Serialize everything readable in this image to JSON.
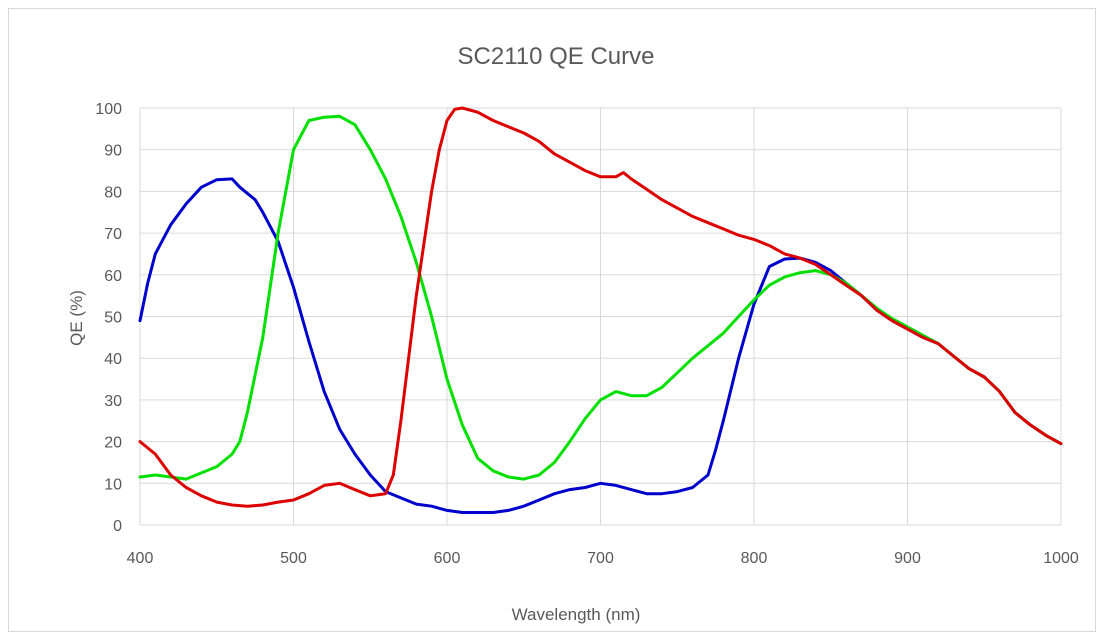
{
  "chart_data": {
    "type": "line",
    "title": "SC2110 QE Curve",
    "xlabel": "Wavelength (nm)",
    "ylabel": "QE (%)",
    "xlim": [
      400,
      1000
    ],
    "ylim": [
      0,
      100
    ],
    "xticks": [
      400,
      500,
      600,
      700,
      800,
      900,
      1000
    ],
    "yticks": [
      0,
      10,
      20,
      30,
      40,
      50,
      60,
      70,
      80,
      90,
      100
    ],
    "grid": "on",
    "legend": "none",
    "series": [
      {
        "color": "#0000cc",
        "points": [
          [
            400,
            49
          ],
          [
            405,
            58
          ],
          [
            410,
            65
          ],
          [
            420,
            72
          ],
          [
            430,
            77
          ],
          [
            440,
            81
          ],
          [
            450,
            82.8
          ],
          [
            460,
            83
          ],
          [
            465,
            81
          ],
          [
            475,
            78
          ],
          [
            480,
            75
          ],
          [
            490,
            68
          ],
          [
            500,
            57
          ],
          [
            510,
            44
          ],
          [
            520,
            32
          ],
          [
            530,
            23
          ],
          [
            540,
            17
          ],
          [
            550,
            12
          ],
          [
            560,
            8
          ],
          [
            570,
            6.5
          ],
          [
            580,
            5
          ],
          [
            590,
            4.5
          ],
          [
            600,
            3.5
          ],
          [
            610,
            3
          ],
          [
            620,
            3
          ],
          [
            630,
            3
          ],
          [
            640,
            3.5
          ],
          [
            650,
            4.5
          ],
          [
            660,
            6
          ],
          [
            670,
            7.5
          ],
          [
            680,
            8.5
          ],
          [
            690,
            9
          ],
          [
            700,
            10
          ],
          [
            710,
            9.5
          ],
          [
            720,
            8.5
          ],
          [
            730,
            7.5
          ],
          [
            740,
            7.5
          ],
          [
            750,
            8
          ],
          [
            760,
            9
          ],
          [
            770,
            12
          ],
          [
            775,
            18
          ],
          [
            780,
            25
          ],
          [
            790,
            40
          ],
          [
            800,
            53
          ],
          [
            810,
            62
          ],
          [
            820,
            63.8
          ],
          [
            830,
            64
          ],
          [
            840,
            63
          ],
          [
            850,
            61
          ],
          [
            860,
            58
          ],
          [
            870,
            55
          ],
          [
            880,
            51.5
          ],
          [
            890,
            49
          ],
          [
            900,
            47
          ],
          [
            910,
            45
          ],
          [
            920,
            43.5
          ],
          [
            930,
            40.5
          ],
          [
            940,
            37.5
          ],
          [
            950,
            35.5
          ],
          [
            960,
            32
          ],
          [
            970,
            27
          ],
          [
            980,
            24
          ],
          [
            990,
            21.5
          ],
          [
            1000,
            19.5
          ]
        ]
      },
      {
        "color": "#00e000",
        "points": [
          [
            400,
            11.5
          ],
          [
            410,
            12
          ],
          [
            420,
            11.5
          ],
          [
            430,
            11
          ],
          [
            440,
            12.5
          ],
          [
            450,
            14
          ],
          [
            460,
            17
          ],
          [
            465,
            20
          ],
          [
            470,
            27
          ],
          [
            480,
            45
          ],
          [
            490,
            70
          ],
          [
            500,
            90
          ],
          [
            510,
            97
          ],
          [
            520,
            97.8
          ],
          [
            530,
            98
          ],
          [
            540,
            96
          ],
          [
            550,
            90
          ],
          [
            560,
            83
          ],
          [
            570,
            74
          ],
          [
            580,
            63
          ],
          [
            590,
            50
          ],
          [
            600,
            35
          ],
          [
            610,
            24
          ],
          [
            620,
            16
          ],
          [
            630,
            13
          ],
          [
            640,
            11.5
          ],
          [
            650,
            11
          ],
          [
            660,
            12
          ],
          [
            670,
            15
          ],
          [
            680,
            20
          ],
          [
            690,
            25.5
          ],
          [
            700,
            30
          ],
          [
            710,
            32
          ],
          [
            720,
            31
          ],
          [
            730,
            31
          ],
          [
            740,
            33
          ],
          [
            750,
            36.5
          ],
          [
            760,
            40
          ],
          [
            770,
            43
          ],
          [
            780,
            46
          ],
          [
            790,
            50
          ],
          [
            800,
            54
          ],
          [
            810,
            57.5
          ],
          [
            820,
            59.5
          ],
          [
            830,
            60.5
          ],
          [
            840,
            61
          ],
          [
            850,
            60
          ],
          [
            860,
            58
          ],
          [
            870,
            55
          ],
          [
            880,
            52
          ],
          [
            890,
            49.5
          ],
          [
            900,
            47.5
          ],
          [
            910,
            45.5
          ],
          [
            920,
            43.5
          ],
          [
            930,
            40.5
          ],
          [
            940,
            37.5
          ],
          [
            950,
            35.5
          ],
          [
            960,
            32
          ],
          [
            970,
            27
          ],
          [
            980,
            24
          ],
          [
            990,
            21.5
          ],
          [
            1000,
            19.5
          ]
        ]
      },
      {
        "color": "#dd0000",
        "points": [
          [
            400,
            20
          ],
          [
            410,
            17
          ],
          [
            420,
            12
          ],
          [
            430,
            9
          ],
          [
            440,
            7
          ],
          [
            450,
            5.5
          ],
          [
            460,
            4.8
          ],
          [
            470,
            4.5
          ],
          [
            480,
            4.8
          ],
          [
            490,
            5.5
          ],
          [
            500,
            6
          ],
          [
            510,
            7.5
          ],
          [
            520,
            9.5
          ],
          [
            530,
            10
          ],
          [
            540,
            8.5
          ],
          [
            550,
            7
          ],
          [
            560,
            7.5
          ],
          [
            565,
            12
          ],
          [
            570,
            25
          ],
          [
            580,
            55
          ],
          [
            590,
            80
          ],
          [
            595,
            90
          ],
          [
            600,
            97
          ],
          [
            605,
            99.7
          ],
          [
            610,
            100
          ],
          [
            620,
            99
          ],
          [
            630,
            97
          ],
          [
            640,
            95.5
          ],
          [
            650,
            94
          ],
          [
            660,
            92
          ],
          [
            670,
            89
          ],
          [
            680,
            87
          ],
          [
            690,
            85
          ],
          [
            700,
            83.5
          ],
          [
            710,
            83.5
          ],
          [
            715,
            84.5
          ],
          [
            720,
            83
          ],
          [
            730,
            80.5
          ],
          [
            740,
            78
          ],
          [
            750,
            76
          ],
          [
            760,
            74
          ],
          [
            770,
            72.5
          ],
          [
            780,
            71
          ],
          [
            790,
            69.5
          ],
          [
            800,
            68.5
          ],
          [
            810,
            67
          ],
          [
            820,
            65
          ],
          [
            830,
            64
          ],
          [
            840,
            62.5
          ],
          [
            850,
            60
          ],
          [
            860,
            57.5
          ],
          [
            870,
            55
          ],
          [
            880,
            51.5
          ],
          [
            890,
            49
          ],
          [
            900,
            47
          ],
          [
            910,
            45
          ],
          [
            920,
            43.5
          ],
          [
            930,
            40.5
          ],
          [
            940,
            37.5
          ],
          [
            950,
            35.5
          ],
          [
            960,
            32
          ],
          [
            970,
            27
          ],
          [
            980,
            24
          ],
          [
            990,
            21.5
          ],
          [
            1000,
            19.5
          ]
        ]
      }
    ]
  }
}
